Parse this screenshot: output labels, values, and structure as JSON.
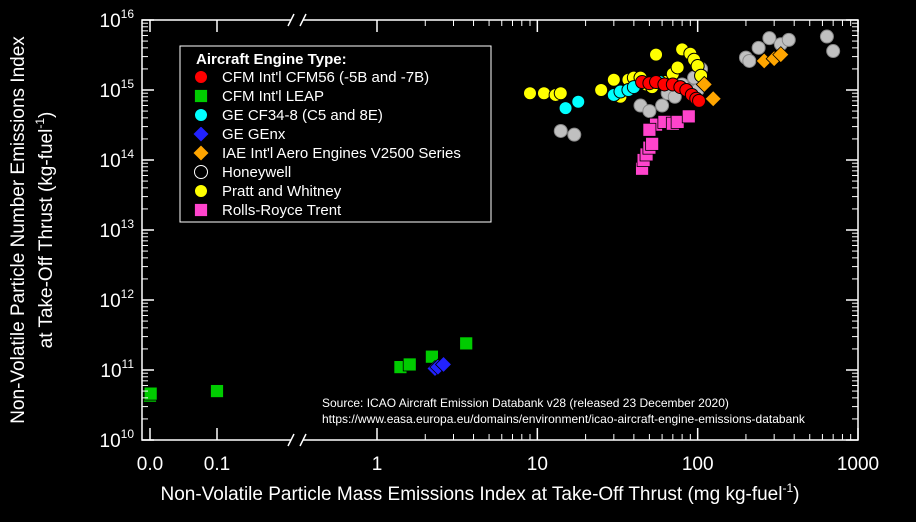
{
  "chart_data": {
    "type": "scatter",
    "xlabel": "Non-Volatile Particle Mass Emissions Index at Take-Off Thrust (mg kg-fuel",
    "xlabel_sup": "-1",
    "xlabel_end": ")",
    "ylabel_line1": "Non-Volatile Particle Number Emissions Index",
    "ylabel_line2": "at Take-Off Thrust (kg-fuel",
    "ylabel_sup": "-1",
    "ylabel_end": ")",
    "x_scale": "log with broken axis near zero",
    "y_scale": "log",
    "xlim": [
      0,
      1000
    ],
    "ylim": [
      10000000000.0,
      1e+16
    ],
    "x_ticks": [
      {
        "value": 0.0,
        "label": "0.0"
      },
      {
        "value": 0.1,
        "label": "0.1"
      },
      {
        "value": 1,
        "label": "1"
      },
      {
        "value": 10,
        "label": "10"
      },
      {
        "value": 100,
        "label": "100"
      },
      {
        "value": 1000,
        "label": "1000"
      }
    ],
    "y_ticks": [
      {
        "exp": 10,
        "base": "10",
        "sup": "10"
      },
      {
        "exp": 11,
        "base": "10",
        "sup": "11"
      },
      {
        "exp": 12,
        "base": "10",
        "sup": "12"
      },
      {
        "exp": 13,
        "base": "10",
        "sup": "13"
      },
      {
        "exp": 14,
        "base": "10",
        "sup": "14"
      },
      {
        "exp": 15,
        "base": "10",
        "sup": "15"
      },
      {
        "exp": 16,
        "base": "10",
        "sup": "16"
      }
    ],
    "grid": false,
    "legend": {
      "title": "Aircraft Engine Type:",
      "placement": "top-left"
    },
    "source": {
      "line1": "Source: ICAO Aircraft Emission Databank v28 (released 23 December 2020)",
      "line2": "https://www.easa.europa.eu/domains/environment/icao-aircraft-engine-emissions-databank"
    },
    "series": [
      {
        "name": "Honeywell",
        "marker": "circle",
        "color": "#c0c0c0",
        "legend_fill": "#000000",
        "legend_stroke": "#ffffff",
        "points": [
          [
            14,
            260000000000000.0
          ],
          [
            17,
            230000000000000.0
          ],
          [
            44,
            600000000000000.0
          ],
          [
            50,
            500000000000000.0
          ],
          [
            60,
            600000000000000.0
          ],
          [
            65,
            900000000000000.0
          ],
          [
            72,
            800000000000000.0
          ],
          [
            80,
            1200000000000000.0
          ],
          [
            88,
            1000000000000000.0
          ],
          [
            95,
            1500000000000000.0
          ],
          [
            100,
            1000000000000000.0
          ],
          [
            105,
            2000000000000000.0
          ],
          [
            200,
            2900000000000000.0
          ],
          [
            210,
            2600000000000000.0
          ],
          [
            240,
            4000000000000000.0
          ],
          [
            280,
            5500000000000000.0
          ],
          [
            330,
            4500000000000000.0
          ],
          [
            370,
            5200000000000000.0
          ],
          [
            640,
            5800000000000000.0
          ],
          [
            700,
            3600000000000000.0
          ]
        ]
      },
      {
        "name": "Pratt and Whitney",
        "marker": "circle",
        "color": "#ffff00",
        "points": [
          [
            9,
            900000000000000.0
          ],
          [
            11,
            900000000000000.0
          ],
          [
            13,
            850000000000000.0
          ],
          [
            14,
            900000000000000.0
          ],
          [
            25,
            1000000000000000.0
          ],
          [
            30,
            1400000000000000.0
          ],
          [
            33,
            800000000000000.0
          ],
          [
            37,
            1400000000000000.0
          ],
          [
            40,
            1500000000000000.0
          ],
          [
            44,
            1500000000000000.0
          ],
          [
            48,
            1200000000000000.0
          ],
          [
            52,
            1100000000000000.0
          ],
          [
            55,
            3200000000000000.0
          ],
          [
            63,
            1300000000000000.0
          ],
          [
            70,
            1700000000000000.0
          ],
          [
            75,
            2100000000000000.0
          ],
          [
            80,
            3800000000000000.0
          ],
          [
            90,
            3300000000000000.0
          ],
          [
            95,
            2700000000000000.0
          ],
          [
            100,
            2200000000000000.0
          ],
          [
            105,
            1600000000000000.0
          ]
        ]
      },
      {
        "name": "GE CF34-8 (C5 and 8E)",
        "marker": "circle",
        "color": "#00ffff",
        "points": [
          [
            15,
            550000000000000.0
          ],
          [
            18,
            680000000000000.0
          ],
          [
            30,
            850000000000000.0
          ],
          [
            33,
            950000000000000.0
          ],
          [
            37,
            1000000000000000.0
          ],
          [
            40,
            1100000000000000.0
          ],
          [
            58,
            1300000000000000.0
          ]
        ]
      },
      {
        "name": "CFM Int'l CFM56 (-5B and -7B)",
        "marker": "circle",
        "color": "#ff0000",
        "points": [
          [
            45,
            1300000000000000.0
          ],
          [
            50,
            1250000000000000.0
          ],
          [
            55,
            1300000000000000.0
          ],
          [
            62,
            1200000000000000.0
          ],
          [
            70,
            1200000000000000.0
          ],
          [
            78,
            1100000000000000.0
          ],
          [
            85,
            1000000000000000.0
          ],
          [
            92,
            850000000000000.0
          ],
          [
            98,
            750000000000000.0
          ],
          [
            102,
            700000000000000.0
          ]
        ]
      },
      {
        "name": "Rolls-Royce Trent",
        "marker": "square",
        "color": "#ff44cc",
        "points": [
          [
            45,
            75000000000000.0
          ],
          [
            46,
            100000000000000.0
          ],
          [
            48,
            120000000000000.0
          ],
          [
            50,
            150000000000000.0
          ],
          [
            52,
            170000000000000.0
          ],
          [
            55,
            320000000000000.0
          ],
          [
            50,
            270000000000000.0
          ],
          [
            62,
            350000000000000.0
          ],
          [
            70,
            330000000000000.0
          ],
          [
            75,
            350000000000000.0
          ],
          [
            88,
            420000000000000.0
          ]
        ]
      },
      {
        "name": "IAE Int'l Aero Engines V2500 Series",
        "marker": "diamond",
        "color": "#ffa500",
        "points": [
          [
            110,
            1200000000000000.0
          ],
          [
            125,
            750000000000000.0
          ],
          [
            260,
            2600000000000000.0
          ],
          [
            300,
            2800000000000000.0
          ],
          [
            330,
            3200000000000000.0
          ]
        ]
      },
      {
        "name": "CFM Int'l LEAP",
        "marker": "square",
        "color": "#00cc00",
        "points": [
          [
            0.0,
            43000000000.0
          ],
          [
            0.001,
            46000000000.0
          ],
          [
            0.1,
            50000000000.0
          ],
          [
            1.4,
            110000000000.0
          ],
          [
            1.6,
            120000000000.0
          ],
          [
            2.2,
            155000000000.0
          ],
          [
            3.6,
            240000000000.0
          ]
        ]
      },
      {
        "name": "GE GEnx",
        "marker": "diamond",
        "color": "#2222ff",
        "points": [
          [
            2.3,
            105000000000.0
          ],
          [
            2.4,
            110000000000.0
          ],
          [
            2.6,
            120000000000.0
          ]
        ]
      }
    ],
    "legend_order": [
      "CFM Int'l CFM56 (-5B and -7B)",
      "CFM Int'l LEAP",
      "GE CF34-8 (C5 and 8E)",
      "GE GEnx",
      "IAE Int'l Aero Engines V2500 Series",
      "Honeywell",
      "Pratt and Whitney",
      "Rolls-Royce Trent"
    ]
  }
}
